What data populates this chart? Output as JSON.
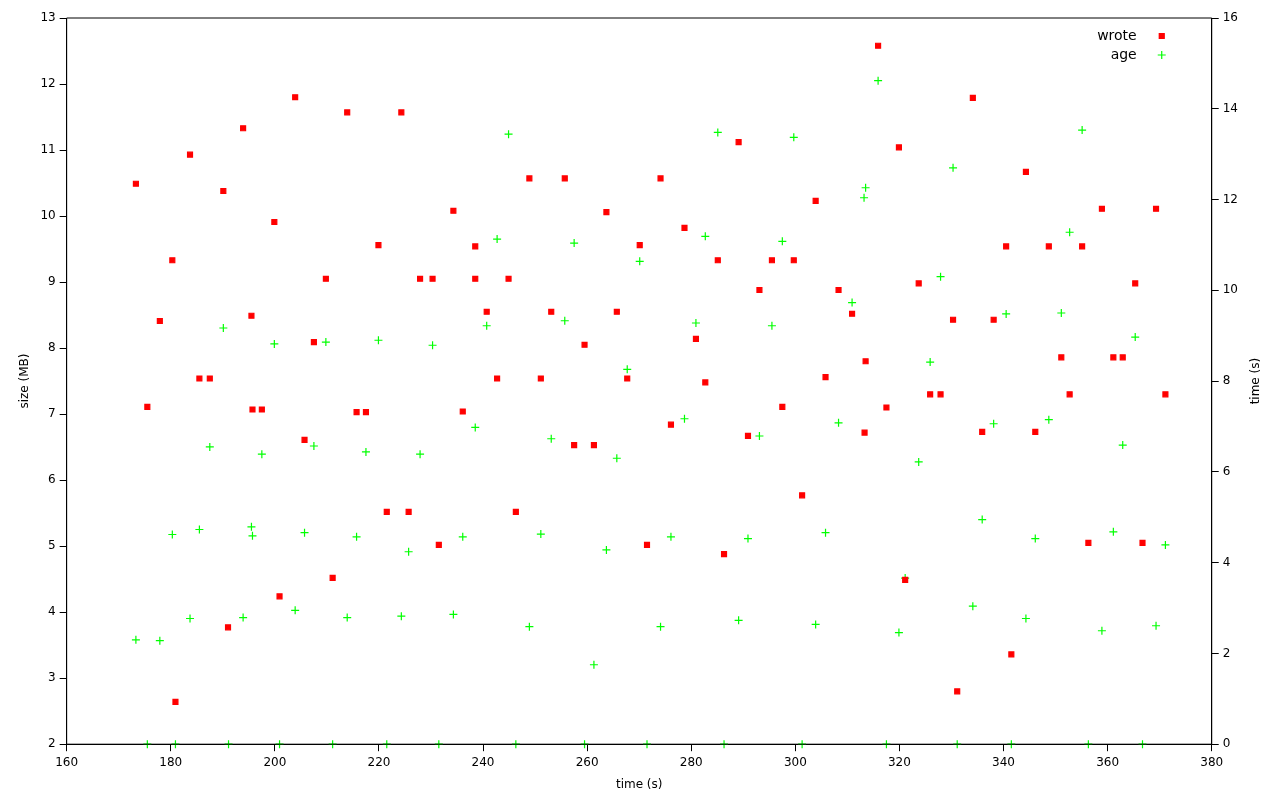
{
  "chart_data": {
    "type": "scatter",
    "xlabel": "time (s)",
    "ylabel": "size (MB)",
    "y2label": "time (s)",
    "xlim": [
      160,
      380
    ],
    "xticks": [
      160,
      180,
      200,
      220,
      240,
      260,
      280,
      300,
      320,
      340,
      360,
      380
    ],
    "ylim": [
      2,
      13
    ],
    "yticks": [
      2,
      3,
      4,
      5,
      6,
      7,
      8,
      9,
      10,
      11,
      12,
      13
    ],
    "y2lim": [
      0,
      16
    ],
    "y2ticks": [
      0,
      2,
      4,
      6,
      8,
      10,
      12,
      14,
      16
    ],
    "grid": false,
    "legend": "top right",
    "series": [
      {
        "name": "wrote",
        "marker": "square",
        "color": "#ff0000",
        "axis": "y",
        "x": [
          173.3,
          175.5,
          177.9,
          180.3,
          180.9,
          183.7,
          185.5,
          187.5,
          190.1,
          191.0,
          193.9,
          195.5,
          195.7,
          197.5,
          199.9,
          200.9,
          203.9,
          205.7,
          207.5,
          209.8,
          211.1,
          213.9,
          215.7,
          217.5,
          219.9,
          221.5,
          224.3,
          225.7,
          227.9,
          230.3,
          231.5,
          234.3,
          236.1,
          238.5,
          238.5,
          240.7,
          242.7,
          244.9,
          246.3,
          248.9,
          251.1,
          253.1,
          255.7,
          257.5,
          259.5,
          261.3,
          263.7,
          265.7,
          267.7,
          270.1,
          271.5,
          274.1,
          276.1,
          278.7,
          280.9,
          282.7,
          285.1,
          286.3,
          289.1,
          290.9,
          293.1,
          295.5,
          297.5,
          299.7,
          301.3,
          303.9,
          305.8,
          308.3,
          310.9,
          313.3,
          313.5,
          315.9,
          317.5,
          319.9,
          321.1,
          323.7,
          325.9,
          327.9,
          330.3,
          331.1,
          334.1,
          335.9,
          338.1,
          340.5,
          341.5,
          344.3,
          346.1,
          348.7,
          351.1,
          352.7,
          355.1,
          356.3,
          358.9,
          361.1,
          362.9,
          365.3,
          366.7,
          369.3,
          371.1
        ],
        "values": [
          10.49,
          7.11,
          8.41,
          9.33,
          2.64,
          10.93,
          7.54,
          7.54,
          10.38,
          3.77,
          11.33,
          8.49,
          7.07,
          7.07,
          9.91,
          4.24,
          11.8,
          6.61,
          8.09,
          9.05,
          4.52,
          11.57,
          7.03,
          7.03,
          9.56,
          5.52,
          11.57,
          5.52,
          9.05,
          9.05,
          5.02,
          10.08,
          7.04,
          9.54,
          9.05,
          8.55,
          7.54,
          9.05,
          5.52,
          10.57,
          7.54,
          8.55,
          10.57,
          6.53,
          8.05,
          6.53,
          10.06,
          8.55,
          7.54,
          9.56,
          5.02,
          10.57,
          6.84,
          9.82,
          8.14,
          7.48,
          9.33,
          4.88,
          11.12,
          6.67,
          8.88,
          9.33,
          7.11,
          9.33,
          5.77,
          10.23,
          7.56,
          8.88,
          8.52,
          6.72,
          7.8,
          12.58,
          7.1,
          11.04,
          4.49,
          8.98,
          7.3,
          7.3,
          8.43,
          2.8,
          11.79,
          6.73,
          8.43,
          9.54,
          3.36,
          10.67,
          6.73,
          9.54,
          7.86,
          7.3,
          9.54,
          5.05,
          10.11,
          7.86,
          7.86,
          8.98,
          5.05,
          10.11,
          7.3
        ]
      },
      {
        "name": "age",
        "marker": "cross",
        "color": "#00ff00",
        "axis": "y2",
        "x": [
          173.3,
          175.5,
          177.9,
          180.3,
          180.9,
          183.7,
          185.5,
          187.5,
          190.1,
          191.1,
          193.9,
          195.5,
          195.7,
          197.5,
          199.9,
          200.9,
          203.9,
          205.7,
          207.5,
          209.8,
          211.1,
          213.9,
          215.7,
          217.5,
          219.9,
          221.5,
          224.3,
          225.7,
          227.9,
          230.3,
          231.5,
          234.3,
          236.1,
          238.5,
          240.7,
          242.7,
          244.9,
          246.3,
          248.9,
          251.1,
          253.1,
          255.7,
          257.5,
          259.5,
          261.3,
          263.7,
          265.7,
          267.7,
          270.1,
          271.5,
          274.1,
          276.1,
          278.7,
          280.9,
          282.7,
          285.1,
          286.3,
          289.1,
          290.9,
          293.1,
          295.5,
          297.5,
          299.7,
          301.3,
          303.9,
          305.8,
          308.3,
          310.9,
          313.2,
          313.5,
          315.9,
          317.5,
          319.9,
          321.1,
          323.7,
          325.9,
          327.9,
          330.3,
          331.1,
          334.1,
          335.9,
          338.1,
          340.5,
          341.5,
          344.3,
          346.1,
          348.7,
          351.1,
          352.7,
          355.1,
          356.3,
          358.9,
          361.1,
          362.9,
          365.3,
          366.7,
          369.3,
          371.1
        ],
        "values": [
          2.3,
          0,
          2.28,
          4.62,
          0,
          2.77,
          4.73,
          6.55,
          9.17,
          0,
          2.79,
          4.79,
          4.59,
          6.39,
          8.82,
          0,
          2.95,
          4.66,
          6.57,
          8.86,
          0,
          2.79,
          4.57,
          6.44,
          8.9,
          0,
          2.82,
          4.24,
          6.39,
          8.79,
          0,
          2.86,
          4.57,
          6.98,
          9.22,
          11.13,
          13.44,
          0,
          2.59,
          4.63,
          6.73,
          9.33,
          11.04,
          0,
          1.75,
          4.28,
          6.3,
          8.26,
          10.64,
          0,
          2.59,
          4.57,
          7.17,
          9.28,
          11.19,
          13.48,
          0,
          2.73,
          4.53,
          6.79,
          9.22,
          11.08,
          13.37,
          0,
          2.64,
          4.66,
          7.08,
          9.73,
          12.04,
          12.26,
          14.62,
          0,
          2.46,
          3.66,
          6.22,
          8.42,
          10.3,
          12.7,
          0,
          3.04,
          4.95,
          7.06,
          9.48,
          0,
          2.77,
          4.53,
          7.15,
          9.5,
          11.28,
          13.53,
          0,
          2.5,
          4.68,
          6.59,
          8.97,
          0,
          2.61,
          4.39
        ]
      }
    ]
  }
}
